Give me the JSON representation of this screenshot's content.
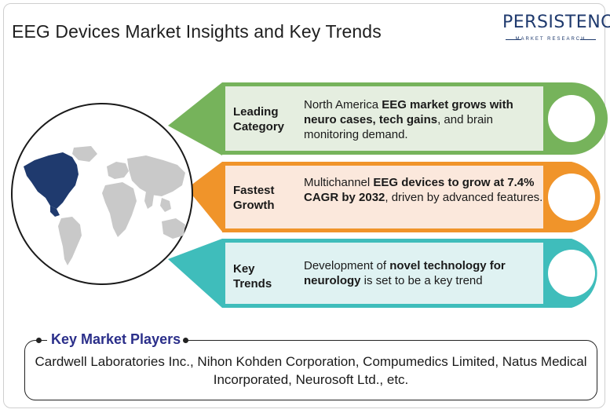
{
  "title": "EEG Devices Market Insights and Key Trends",
  "logo": {
    "name": "PERSISTENCE",
    "sub": "MARKET RESEARCH"
  },
  "colors": {
    "green": "#76b35b",
    "green_fill": "#e5eee0",
    "orange": "#f0942a",
    "orange_fill": "#fbe8dc",
    "teal": "#3fbdbb",
    "teal_fill": "#dff2f2",
    "navy": "#2b2f8a",
    "map_grey": "#c9c9c9",
    "map_highlight": "#1f3a6e"
  },
  "rows": [
    {
      "label_line1": "Leading",
      "label_line2": "Category",
      "desc": [
        {
          "t": "North America ",
          "b": false
        },
        {
          "t": "EEG market grows with neuro cases, tech gains",
          "b": true
        },
        {
          "t": ", and brain monitoring demand.",
          "b": false
        }
      ]
    },
    {
      "label_line1": "Fastest",
      "label_line2": "Growth",
      "desc": [
        {
          "t": "Multichannel ",
          "b": false
        },
        {
          "t": "EEG devices to grow at 7.4% CAGR by 2032",
          "b": true
        },
        {
          "t": ", driven by advanced features.",
          "b": false
        }
      ]
    },
    {
      "label_line1": "Key",
      "label_line2": "Trends",
      "desc": [
        {
          "t": "Development of ",
          "b": false
        },
        {
          "t": "novel technology for neurology",
          "b": true
        },
        {
          "t": " is set to be a key trend",
          "b": false
        }
      ]
    }
  ],
  "key_players": {
    "title": "Key Market Players",
    "text": "Cardwell Laboratories Inc., Nihon Kohden Corporation, Compumedics Limited, Natus Medical Incorporated, Neurosoft Ltd., etc."
  }
}
